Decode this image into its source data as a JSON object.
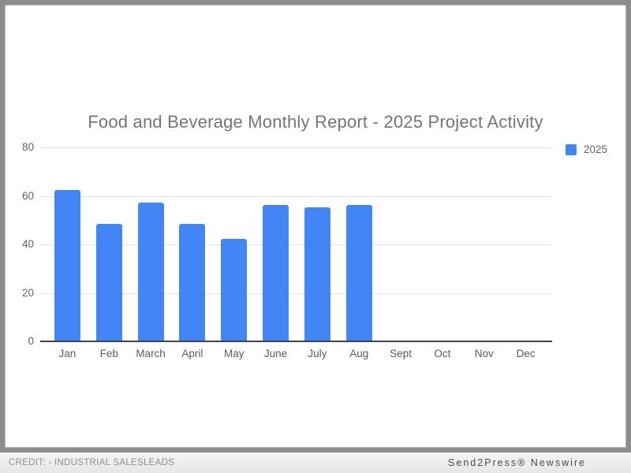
{
  "chart_data": {
    "type": "bar",
    "title": "Food and Beverage Monthly Report - 2025 Project Activity",
    "categories": [
      "Jan",
      "Feb",
      "March",
      "April",
      "May",
      "June",
      "July",
      "Aug",
      "Sept",
      "Oct",
      "Nov",
      "Dec"
    ],
    "series": [
      {
        "name": "2025",
        "values": [
          62,
          48,
          57,
          48,
          42,
          56,
          55,
          56,
          0,
          0,
          0,
          0
        ]
      }
    ],
    "xlabel": "",
    "ylabel": "",
    "ylim": [
      0,
      80
    ],
    "yticks": [
      0,
      20,
      40,
      60,
      80
    ],
    "grid": true,
    "legend_position": "right",
    "bar_color": "#4285f4",
    "title_color": "#757575",
    "axis_label_color": "#6c5f5f",
    "gridline_color": "#e4e4e4",
    "baseline_color": "#424242"
  },
  "footer": {
    "credit": "CREDIT: - INDUSTRIAL SALESLEADS",
    "brand": "Send2Press® Newswire"
  }
}
